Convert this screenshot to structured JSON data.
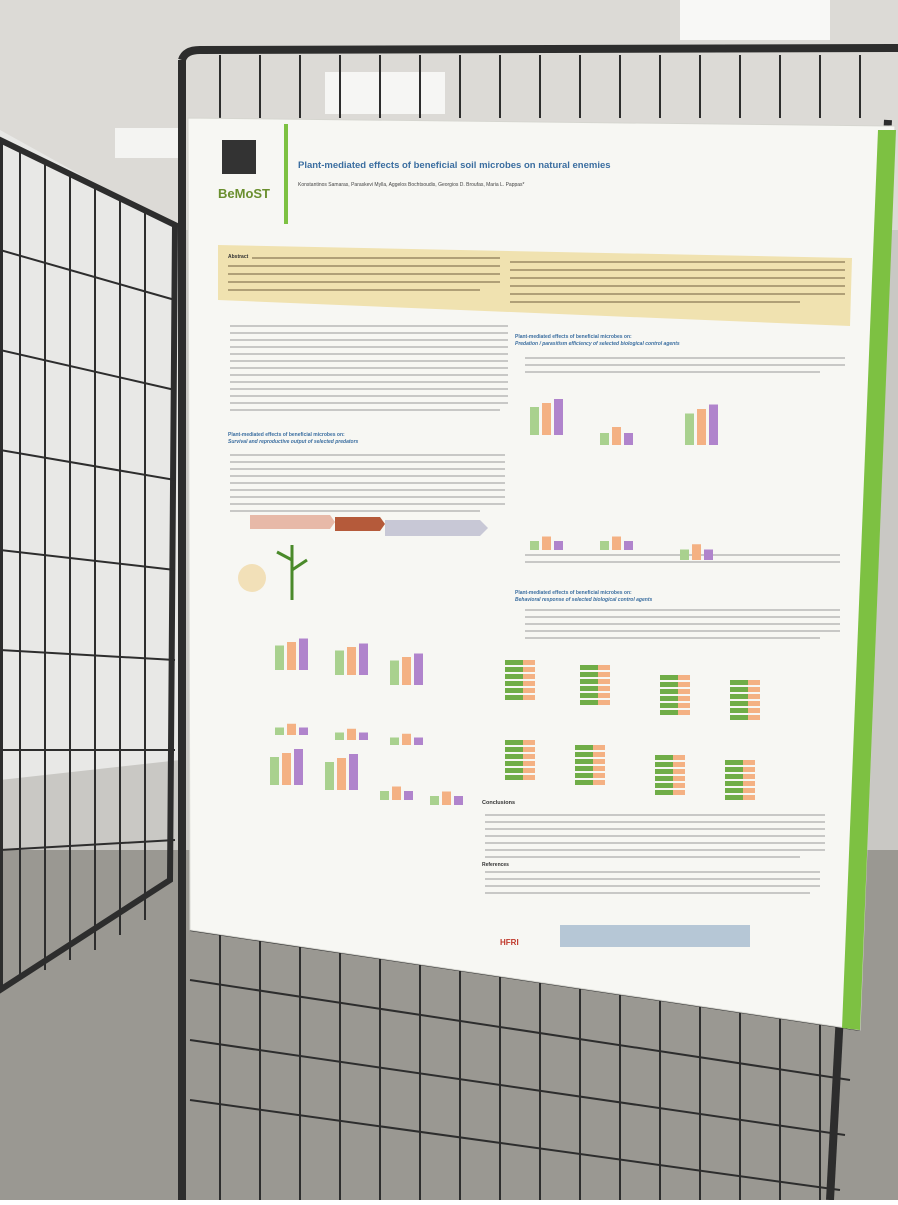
{
  "poster": {
    "logo": "BeMoST",
    "title": "Plant-mediated effects of beneficial soil microbes on natural enemies",
    "authors": "Konstantinos Samaras, Paraskevi Mylla, Aggelos Bochtsoudis, Georgios D. Broufas, Maria L. Pappas*",
    "abstract_heading": "Abstract",
    "sections": [
      {
        "heading": "Plant-mediated effects of beneficial microbes on:",
        "subheading": "Predation / parasitism efficiency of selected biological control agents"
      },
      {
        "heading": "Plant-mediated effects of beneficial microbes on:",
        "subheading": "Survival and reproductive output of selected predators"
      },
      {
        "heading": "Plant-mediated effects of beneficial microbes on:",
        "subheading": "Behavioral response of selected biological control agents"
      }
    ],
    "conclusions_heading": "Conclusions",
    "references_heading": "References",
    "funder": "HFRI"
  }
}
